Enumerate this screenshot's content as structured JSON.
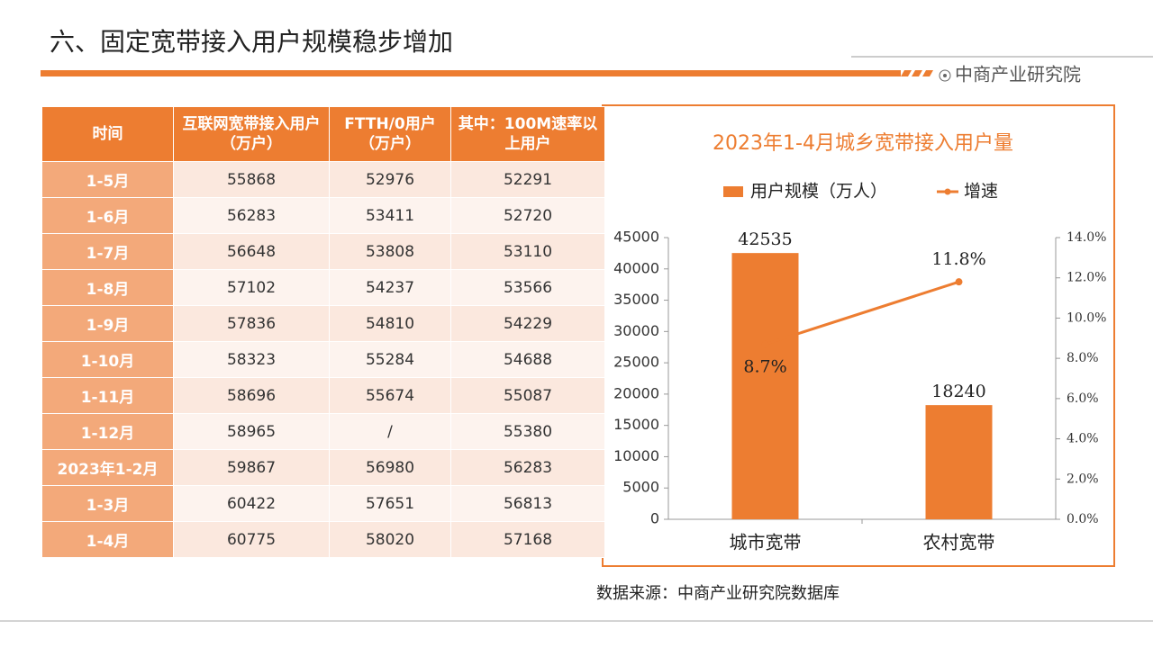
{
  "header": {
    "title": "六、固定宽带接入用户规模稳步增加",
    "brand": "中商产业研究院"
  },
  "table": {
    "header": [
      "时间",
      "互联网宽带接入用户（万户）",
      "FTTH/0用户（万户）",
      "其中：100M速率以上用户"
    ],
    "rows": [
      [
        "1-5月",
        55868,
        52976,
        52291
      ],
      [
        "1-6月",
        56283,
        53411,
        52720
      ],
      [
        "1-7月",
        56648,
        53808,
        53110
      ],
      [
        "1-8月",
        57102,
        54237,
        53566
      ],
      [
        "1-9月",
        57836,
        54810,
        54229
      ],
      [
        "1-10月",
        58323,
        55284,
        54688
      ],
      [
        "1-11月",
        58696,
        55674,
        55087
      ],
      [
        "1-12月",
        58965,
        "/",
        55380
      ],
      [
        "2023年1-2月",
        59867,
        56980,
        56283
      ],
      [
        "1-3月",
        60422,
        57651,
        56813
      ],
      [
        "1-4月",
        60775,
        58020,
        57168
      ]
    ]
  },
  "chart_data": {
    "type": "bar",
    "title": "2023年1-4月城乡宽带接入用户量",
    "categories": [
      "城市宽带",
      "农村宽带"
    ],
    "series": [
      {
        "name": "用户规模（万人）",
        "type": "bar",
        "color": "#ed7d31",
        "values": [
          42535,
          18240
        ]
      },
      {
        "name": "增速",
        "type": "line",
        "axis": "y2",
        "color": "#ed7d31",
        "values": [
          8.7,
          11.8
        ],
        "value_labels": [
          "8.7%",
          "11.8%"
        ]
      }
    ],
    "ylim": [
      0,
      45000
    ],
    "yticks": [
      0,
      5000,
      10000,
      15000,
      20000,
      25000,
      30000,
      35000,
      40000,
      45000
    ],
    "y2lim": [
      0,
      14
    ],
    "y2ticks": [
      {
        "value": 0,
        "label": "0.0%"
      },
      {
        "value": 2,
        "label": "2.0%"
      },
      {
        "value": 4,
        "label": "4.0%"
      },
      {
        "value": 6,
        "label": "6.0%"
      },
      {
        "value": 8,
        "label": "8.0%"
      },
      {
        "value": 10,
        "label": "10.0%"
      },
      {
        "value": 12,
        "label": "12.0%"
      },
      {
        "value": 14,
        "label": "14.0%"
      }
    ],
    "legend": "top"
  },
  "source": "数据来源：中商产业研究院数据库"
}
